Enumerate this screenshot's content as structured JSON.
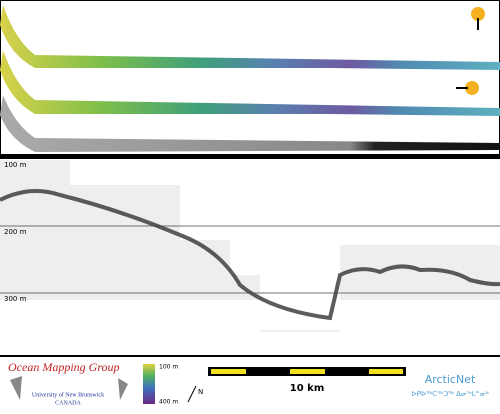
{
  "profile": {
    "depth_labels": [
      "100 m",
      "200 m",
      "300 m"
    ]
  },
  "logo": {
    "title": "Ocean Mapping Group",
    "institution": "University of New Brunswick",
    "country": "CANADA"
  },
  "colorbar": {
    "top_label": "100 m",
    "bottom_label": "400 m"
  },
  "north": "N",
  "scale_bar": "10 km",
  "partner": {
    "name": "ArcticNet",
    "syllabics": "ᐅᑭᐅᖅᑕᖅᑐᖅ ᐃᓂᖓᓐᓂᒃ"
  }
}
